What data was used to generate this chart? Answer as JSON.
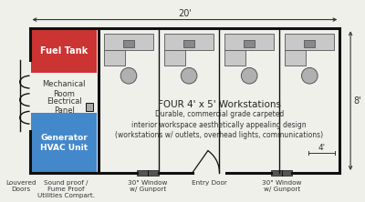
{
  "bg_color": "#f0f0eb",
  "wall_color": "#111111",
  "fuel_tank_color": "#cc3333",
  "generator_color": "#4488cc",
  "label_fuel": "Fuel Tank",
  "label_mech": "Mechanical\nRoom",
  "label_elec": "Electrical\nPanel",
  "label_gen": "Generator\nHVAC Unit",
  "label_louvered": "Louvered\nDoors",
  "label_soundproof": "Sound proof /\nFume Proof\nUtilities Compart.",
  "label_window1": "30\" Window\nw/ Gunport",
  "label_window2": "30\" Window\nw/ Gunport",
  "label_entry": "Entry Door",
  "label_four_workstations": "FOUR 4' x 5' Workstations",
  "label_durable": "Durable, commercial grade carpeted\ninterior workspace aesthetically appealing design\n(workstations w/ outlets, overhead lights, communications)",
  "title_20ft": "20'",
  "title_8ft": "8'",
  "title_4ft": "4'"
}
